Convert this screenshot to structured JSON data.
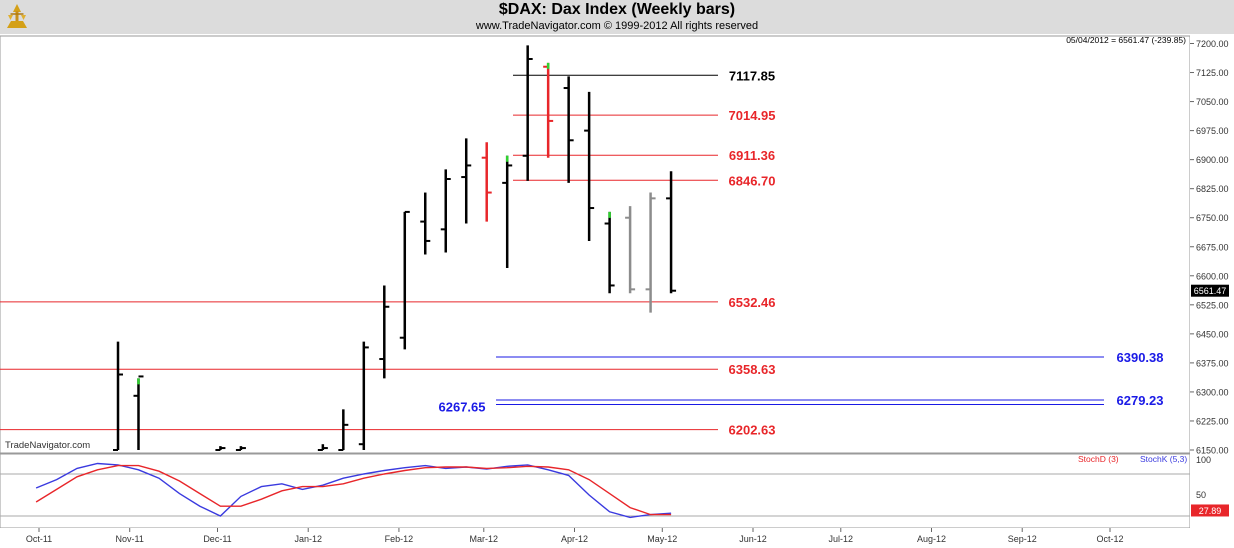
{
  "header": {
    "title": "$DAX:  Dax Index  (Weekly bars)",
    "copyright": "www.TradeNavigator.com © 1999-2012 All rights reserved",
    "last_info": "05/04/2012 = 6561.47 (-239.85)",
    "watermark": "TradeNavigator.com"
  },
  "price_axis": {
    "ticks": [
      "7200.00",
      "7125.00",
      "7050.00",
      "6975.00",
      "6900.00",
      "6825.00",
      "6750.00",
      "6675.00",
      "6600.00",
      "6525.00",
      "6450.00",
      "6375.00",
      "6300.00",
      "6225.00",
      "6150.00"
    ],
    "last_price_label": "6561.47"
  },
  "stoch_axis": {
    "ticks": [
      "100",
      "50"
    ],
    "value_label": "27.89"
  },
  "time_axis": {
    "labels": [
      "Oct-11",
      "Nov-11",
      "Dec-11",
      "Jan-12",
      "Feb-12",
      "Mar-12",
      "Apr-12",
      "May-12",
      "Jun-12",
      "Jul-12",
      "Aug-12",
      "Sep-12",
      "Oct-12"
    ]
  },
  "colors": {
    "red_levels": "#e8262a",
    "black_level": "#000000",
    "blue_levels": "#1a1ae6",
    "stoch_d": "#e8262a",
    "stoch_k": "#3a3adf",
    "up_tick": "#2fd22f"
  },
  "chart_data": [
    {
      "type": "ohlc",
      "title": "$DAX:  Dax Index  (Weekly bars)",
      "ylim": [
        6150,
        7225
      ],
      "levels": [
        {
          "label": "7117.85",
          "value": 7117.85,
          "color": "black"
        },
        {
          "label": "7014.95",
          "value": 7014.95,
          "color": "red"
        },
        {
          "label": "6911.36",
          "value": 6911.36,
          "color": "red"
        },
        {
          "label": "6846.70",
          "value": 6846.7,
          "color": "red"
        },
        {
          "label": "6532.46",
          "value": 6532.46,
          "color": "red"
        },
        {
          "label": "6390.38",
          "value": 6390.38,
          "color": "blue"
        },
        {
          "label": "6358.63",
          "value": 6358.63,
          "color": "red"
        },
        {
          "label": "6279.23",
          "value": 6279.23,
          "color": "blue"
        },
        {
          "label": "6267.65",
          "value": 6267.65,
          "color": "blue"
        },
        {
          "label": "6202.63",
          "value": 6202.63,
          "color": "red"
        }
      ],
      "bars": [
        {
          "date": "2011-10-28",
          "high": 6430,
          "low": 6150,
          "open": 6150,
          "close": 6345,
          "color": "black"
        },
        {
          "date": "2011-11-04",
          "high": 6335,
          "low": 6150,
          "open": 6290,
          "close": 6340,
          "color": "black"
        },
        {
          "date": "2011-12-02",
          "high": 6160,
          "low": 6150,
          "open": 6150,
          "close": 6155,
          "color": "black"
        },
        {
          "date": "2011-12-09",
          "high": 6160,
          "low": 6150,
          "open": 6150,
          "close": 6155,
          "color": "black"
        },
        {
          "date": "2012-01-06",
          "high": 6165,
          "low": 6150,
          "open": 6150,
          "close": 6155,
          "color": "black"
        },
        {
          "date": "2012-01-13",
          "high": 6255,
          "low": 6150,
          "open": 6150,
          "close": 6215,
          "color": "black"
        },
        {
          "date": "2012-01-20",
          "high": 6430,
          "low": 6150,
          "open": 6165,
          "close": 6415,
          "color": "black"
        },
        {
          "date": "2012-01-27",
          "high": 6575,
          "low": 6335,
          "open": 6385,
          "close": 6520,
          "color": "black"
        },
        {
          "date": "2012-02-03",
          "high": 6765,
          "low": 6410,
          "open": 6440,
          "close": 6765,
          "color": "black"
        },
        {
          "date": "2012-02-10",
          "high": 6815,
          "low": 6655,
          "open": 6740,
          "close": 6690,
          "color": "black"
        },
        {
          "date": "2012-02-17",
          "high": 6875,
          "low": 6660,
          "open": 6720,
          "close": 6850,
          "color": "black"
        },
        {
          "date": "2012-02-24",
          "high": 6955,
          "low": 6735,
          "open": 6855,
          "close": 6885,
          "color": "black"
        },
        {
          "date": "2012-03-02",
          "high": 6945,
          "low": 6740,
          "open": 6905,
          "close": 6815,
          "color": "red"
        },
        {
          "date": "2012-03-09",
          "high": 6910,
          "low": 6620,
          "open": 6840,
          "close": 6885,
          "color": "black"
        },
        {
          "date": "2012-03-16",
          "high": 7195,
          "low": 6845,
          "open": 6910,
          "close": 7160,
          "color": "black"
        },
        {
          "date": "2012-03-23",
          "high": 7150,
          "low": 6905,
          "open": 7140,
          "close": 7000,
          "color": "red"
        },
        {
          "date": "2012-03-30",
          "high": 7115,
          "low": 6840,
          "open": 7085,
          "close": 6950,
          "color": "black"
        },
        {
          "date": "2012-04-06",
          "high": 7075,
          "low": 6690,
          "open": 6975,
          "close": 6775,
          "color": "black"
        },
        {
          "date": "2012-04-13",
          "high": 6765,
          "low": 6555,
          "open": 6735,
          "close": 6575,
          "color": "black"
        },
        {
          "date": "2012-04-20",
          "high": 6780,
          "low": 6555,
          "open": 6750,
          "close": 6565,
          "color": "gray"
        },
        {
          "date": "2012-04-27",
          "high": 6815,
          "low": 6505,
          "open": 6565,
          "close": 6800,
          "color": "gray"
        },
        {
          "date": "2012-05-04",
          "high": 6870,
          "low": 6555,
          "open": 6800,
          "close": 6561.47,
          "color": "black"
        }
      ]
    },
    {
      "type": "line",
      "legend": [
        "StochD (3)",
        "StochK (5,3)"
      ],
      "ylim": [
        0,
        100
      ],
      "x": [
        "2011-09-30",
        "2011-10-07",
        "2011-10-14",
        "2011-10-21",
        "2011-10-28",
        "2011-11-04",
        "2011-11-11",
        "2011-11-18",
        "2011-11-25",
        "2011-12-02",
        "2011-12-09",
        "2011-12-16",
        "2011-12-23",
        "2011-12-30",
        "2012-01-06",
        "2012-01-13",
        "2012-01-20",
        "2012-01-27",
        "2012-02-03",
        "2012-02-10",
        "2012-02-17",
        "2012-02-24",
        "2012-03-02",
        "2012-03-09",
        "2012-03-16",
        "2012-03-23",
        "2012-03-30",
        "2012-04-06",
        "2012-04-13",
        "2012-04-20",
        "2012-04-27",
        "2012-05-04"
      ],
      "series": [
        {
          "name": "StochK (5,3)",
          "values": [
            60,
            72,
            88,
            95,
            93,
            86,
            74,
            52,
            34,
            20,
            48,
            62,
            66,
            58,
            64,
            74,
            80,
            85,
            89,
            92,
            88,
            90,
            87,
            91,
            93,
            86,
            78,
            50,
            26,
            18,
            22,
            24
          ]
        },
        {
          "name": "StochD (3)",
          "values": [
            40,
            58,
            76,
            86,
            92,
            92,
            84,
            70,
            52,
            34,
            34,
            44,
            56,
            62,
            62,
            66,
            74,
            80,
            85,
            89,
            90,
            90,
            88,
            89,
            91,
            90,
            86,
            72,
            52,
            32,
            22,
            22
          ]
        }
      ]
    }
  ]
}
